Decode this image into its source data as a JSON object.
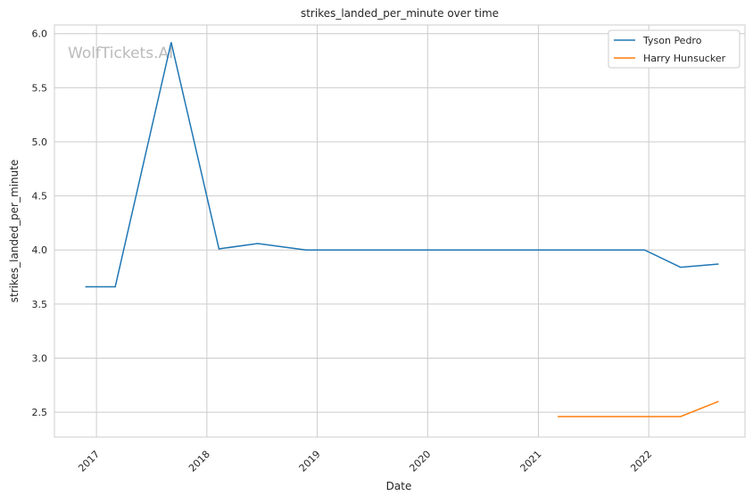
{
  "chart_data": {
    "type": "line",
    "title": "strikes_landed_per_minute over time",
    "xlabel": "Date",
    "ylabel": "strikes_landed_per_minute",
    "watermark": "WolfTickets.AI",
    "xlim": [
      "2016-08-15",
      "2022-11-15"
    ],
    "ylim": [
      2.27,
      6.08
    ],
    "x_ticks": [
      "2017",
      "2018",
      "2019",
      "2020",
      "2021",
      "2022"
    ],
    "y_ticks": [
      "2.5",
      "3.0",
      "3.5",
      "4.0",
      "4.5",
      "5.0",
      "5.5",
      "6.0"
    ],
    "grid": true,
    "legend_position": "top-right",
    "series": [
      {
        "name": "Tyson Pedro",
        "color": "#1f77b4",
        "x": [
          "2016-11-25",
          "2017-03-04",
          "2017-09-05",
          "2018-02-10",
          "2018-06-18",
          "2018-11-25",
          "2021-12-18",
          "2022-04-16",
          "2022-08-20"
        ],
        "y": [
          3.66,
          3.66,
          5.92,
          4.01,
          4.06,
          4.0,
          4.0,
          3.84,
          3.87
        ]
      },
      {
        "name": "Harry Hunsucker",
        "color": "#ff7f0e",
        "x": [
          "2021-03-06",
          "2022-04-16",
          "2022-08-20"
        ],
        "y": [
          2.46,
          2.46,
          2.6
        ]
      }
    ]
  }
}
